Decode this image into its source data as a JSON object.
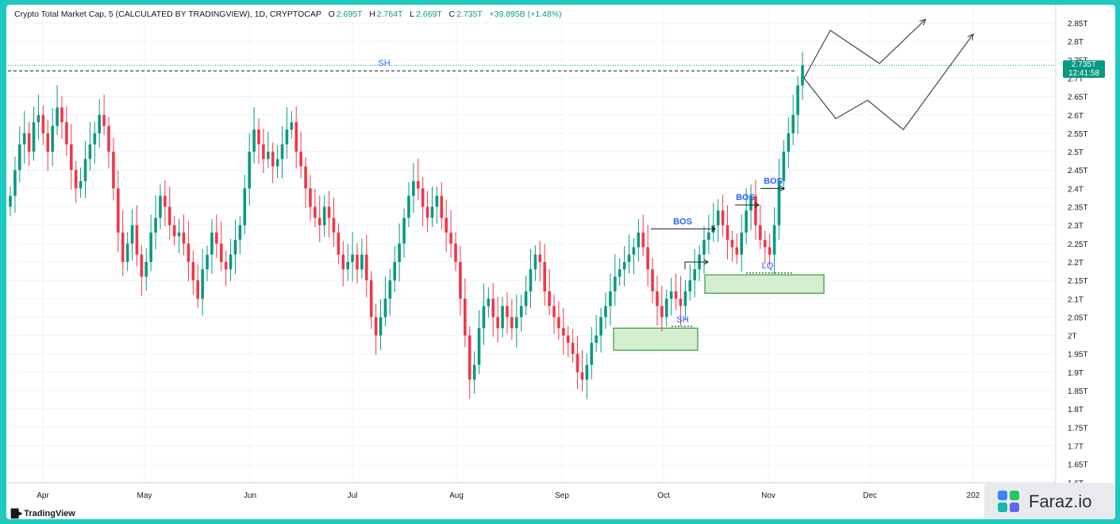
{
  "header": {
    "symbol_title": "Crypto Total Market Cap, 5 (CALCULATED BY TRADINGVIEW), 1D, CRYPTOCAP",
    "open_label": "O",
    "open": "2.695T",
    "high_label": "H",
    "high": "2.764T",
    "low_label": "L",
    "low": "2.669T",
    "close_label": "C",
    "close": "2.735T",
    "change": "+39.895B (+1.48%)"
  },
  "price_tag": {
    "price": "2.735T",
    "countdown": "12:41:58"
  },
  "branding": {
    "tradingview": "TradingView",
    "watermark": "Faraz.io"
  },
  "colors": {
    "up": "#089981",
    "down": "#f23645",
    "annotation": "#2962ff",
    "zone_fill": "#d4eecf",
    "zone_border": "#2e9d3a",
    "background_frame": "#1fc9c0"
  },
  "chart_data": {
    "type": "candlestick",
    "x_ticks": [
      "Apr",
      "May",
      "Jun",
      "Jul",
      "Aug",
      "Sep",
      "Oct",
      "Nov",
      "Dec",
      "202"
    ],
    "y_ticks": [
      "2.85T",
      "2.8T",
      "2.75T",
      "2.7T",
      "2.65T",
      "2.6T",
      "2.55T",
      "2.5T",
      "2.45T",
      "2.4T",
      "2.35T",
      "2.3T",
      "2.25T",
      "2.2T",
      "2.15T",
      "2.1T",
      "2.05T",
      "2T",
      "1.95T",
      "1.9T",
      "1.85T",
      "1.8T",
      "1.75T",
      "1.7T",
      "1.65T",
      "1.6T"
    ],
    "ylim": [
      1.6,
      2.87
    ],
    "grid": true,
    "price_line": 2.735,
    "series_close": [
      2.38,
      2.45,
      2.52,
      2.55,
      2.5,
      2.58,
      2.6,
      2.55,
      2.5,
      2.57,
      2.62,
      2.58,
      2.52,
      2.45,
      2.4,
      2.42,
      2.48,
      2.52,
      2.55,
      2.6,
      2.57,
      2.5,
      2.4,
      2.28,
      2.2,
      2.25,
      2.3,
      2.22,
      2.16,
      2.2,
      2.28,
      2.32,
      2.38,
      2.35,
      2.3,
      2.27,
      2.28,
      2.25,
      2.2,
      2.15,
      2.1,
      2.18,
      2.22,
      2.28,
      2.25,
      2.2,
      2.18,
      2.22,
      2.26,
      2.3,
      2.4,
      2.5,
      2.56,
      2.52,
      2.48,
      2.5,
      2.46,
      2.48,
      2.52,
      2.56,
      2.58,
      2.5,
      2.46,
      2.4,
      2.35,
      2.32,
      2.3,
      2.35,
      2.32,
      2.28,
      2.22,
      2.18,
      2.2,
      2.22,
      2.18,
      2.22,
      2.15,
      2.05,
      2.0,
      2.05,
      2.1,
      2.15,
      2.2,
      2.25,
      2.32,
      2.38,
      2.42,
      2.4,
      2.35,
      2.32,
      2.35,
      2.38,
      2.32,
      2.28,
      2.25,
      2.2,
      2.1,
      2.0,
      1.88,
      1.92,
      2.02,
      2.08,
      2.1,
      2.05,
      2.02,
      2.08,
      2.05,
      2.02,
      2.05,
      2.08,
      2.12,
      2.18,
      2.22,
      2.2,
      2.12,
      2.08,
      2.05,
      2.02,
      2.0,
      1.98,
      1.95,
      1.9,
      1.88,
      1.92,
      1.98,
      2.0,
      2.05,
      2.08,
      2.12,
      2.16,
      2.18,
      2.2,
      2.22,
      2.24,
      2.28,
      2.24,
      2.18,
      2.12,
      2.08,
      2.05,
      2.1,
      2.12,
      2.1,
      2.08,
      2.12,
      2.15,
      2.18,
      2.22,
      2.26,
      2.28,
      2.3,
      2.34,
      2.3,
      2.26,
      2.24,
      2.22,
      2.28,
      2.34,
      2.38,
      2.3,
      2.26,
      2.24,
      2.22,
      2.3,
      2.42,
      2.5,
      2.55,
      2.6,
      2.68,
      2.735
    ],
    "annotations": [
      {
        "type": "level",
        "label": "SH",
        "value": 2.72
      },
      {
        "type": "bos",
        "label": "BOS",
        "value": 2.29
      },
      {
        "type": "bos",
        "label": "BOS",
        "value": 2.355
      },
      {
        "type": "bos",
        "label": "BOS",
        "value": 2.4
      },
      {
        "type": "level",
        "label": "SH",
        "value": 2.025
      },
      {
        "type": "level",
        "label": "LQ",
        "value": 2.17
      },
      {
        "type": "zone",
        "label": "",
        "from": 1.96,
        "to": 2.02
      },
      {
        "type": "zone",
        "label": "",
        "from": 2.115,
        "to": 2.165
      }
    ],
    "projection_paths": [
      [
        [
          2.7,
          0
        ],
        [
          2.83,
          1
        ],
        [
          2.74,
          2
        ],
        [
          2.86,
          3
        ]
      ],
      [
        [
          2.7,
          0
        ],
        [
          2.59,
          1
        ],
        [
          2.64,
          2
        ],
        [
          2.56,
          3
        ],
        [
          2.82,
          4
        ]
      ]
    ]
  }
}
